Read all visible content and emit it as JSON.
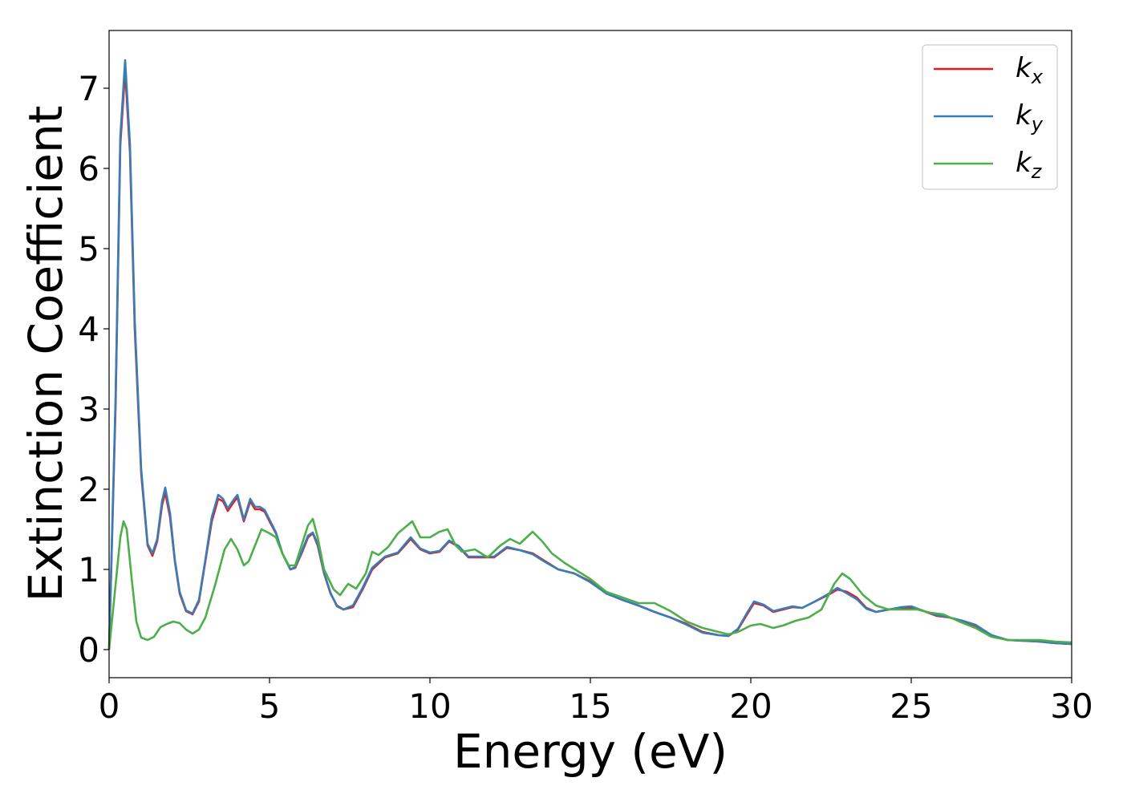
{
  "chart_data": {
    "type": "line",
    "xlabel": "Energy (eV)",
    "ylabel": "Extinction Coefficient",
    "xlim": [
      0,
      30
    ],
    "ylim": [
      -0.35,
      7.72
    ],
    "xticks": [
      0,
      5,
      10,
      15,
      20,
      25,
      30
    ],
    "yticks": [
      0,
      1,
      2,
      3,
      4,
      5,
      6,
      7
    ],
    "grid": false,
    "legend_position": "upper-right",
    "series": [
      {
        "name": "k",
        "subscript": "x",
        "color": "#e41a1c",
        "points": [
          [
            0,
            0
          ],
          [
            0.2,
            3.0
          ],
          [
            0.35,
            6.3
          ],
          [
            0.5,
            7.22
          ],
          [
            0.65,
            6.2
          ],
          [
            0.8,
            4.0
          ],
          [
            1.0,
            2.2
          ],
          [
            1.2,
            1.3
          ],
          [
            1.35,
            1.17
          ],
          [
            1.5,
            1.35
          ],
          [
            1.65,
            1.8
          ],
          [
            1.75,
            1.96
          ],
          [
            1.9,
            1.65
          ],
          [
            2.05,
            1.1
          ],
          [
            2.2,
            0.7
          ],
          [
            2.4,
            0.48
          ],
          [
            2.6,
            0.44
          ],
          [
            2.8,
            0.6
          ],
          [
            3.0,
            1.1
          ],
          [
            3.2,
            1.6
          ],
          [
            3.4,
            1.88
          ],
          [
            3.55,
            1.85
          ],
          [
            3.7,
            1.73
          ],
          [
            3.85,
            1.82
          ],
          [
            4.0,
            1.9
          ],
          [
            4.2,
            1.6
          ],
          [
            4.4,
            1.85
          ],
          [
            4.55,
            1.75
          ],
          [
            4.7,
            1.75
          ],
          [
            4.85,
            1.72
          ],
          [
            5.0,
            1.6
          ],
          [
            5.2,
            1.45
          ],
          [
            5.4,
            1.2
          ],
          [
            5.65,
            1.0
          ],
          [
            5.8,
            1.02
          ],
          [
            6.0,
            1.2
          ],
          [
            6.2,
            1.4
          ],
          [
            6.35,
            1.45
          ],
          [
            6.5,
            1.3
          ],
          [
            6.7,
            0.95
          ],
          [
            6.9,
            0.7
          ],
          [
            7.1,
            0.55
          ],
          [
            7.3,
            0.5
          ],
          [
            7.6,
            0.53
          ],
          [
            7.9,
            0.75
          ],
          [
            8.2,
            1.0
          ],
          [
            8.6,
            1.15
          ],
          [
            9.0,
            1.2
          ],
          [
            9.4,
            1.38
          ],
          [
            9.7,
            1.25
          ],
          [
            10.0,
            1.2
          ],
          [
            10.3,
            1.22
          ],
          [
            10.6,
            1.35
          ],
          [
            10.9,
            1.28
          ],
          [
            11.2,
            1.15
          ],
          [
            11.6,
            1.15
          ],
          [
            12.0,
            1.15
          ],
          [
            12.4,
            1.27
          ],
          [
            12.8,
            1.24
          ],
          [
            13.2,
            1.2
          ],
          [
            13.6,
            1.1
          ],
          [
            14.0,
            1.0
          ],
          [
            14.5,
            0.95
          ],
          [
            15.0,
            0.85
          ],
          [
            15.5,
            0.7
          ],
          [
            16.0,
            0.62
          ],
          [
            16.5,
            0.55
          ],
          [
            17.0,
            0.47
          ],
          [
            17.5,
            0.4
          ],
          [
            18.0,
            0.32
          ],
          [
            18.5,
            0.22
          ],
          [
            19.0,
            0.18
          ],
          [
            19.3,
            0.17
          ],
          [
            19.6,
            0.25
          ],
          [
            19.9,
            0.45
          ],
          [
            20.1,
            0.58
          ],
          [
            20.4,
            0.55
          ],
          [
            20.7,
            0.47
          ],
          [
            21.0,
            0.5
          ],
          [
            21.3,
            0.53
          ],
          [
            21.6,
            0.52
          ],
          [
            22.0,
            0.6
          ],
          [
            22.4,
            0.68
          ],
          [
            22.7,
            0.75
          ],
          [
            23.0,
            0.72
          ],
          [
            23.3,
            0.65
          ],
          [
            23.6,
            0.52
          ],
          [
            23.9,
            0.47
          ],
          [
            24.3,
            0.5
          ],
          [
            24.7,
            0.52
          ],
          [
            25.0,
            0.52
          ],
          [
            25.4,
            0.48
          ],
          [
            25.8,
            0.42
          ],
          [
            26.2,
            0.4
          ],
          [
            26.6,
            0.35
          ],
          [
            27.0,
            0.3
          ],
          [
            27.5,
            0.18
          ],
          [
            28.0,
            0.12
          ],
          [
            28.5,
            0.11
          ],
          [
            29.0,
            0.1
          ],
          [
            29.5,
            0.08
          ],
          [
            30.0,
            0.07
          ]
        ]
      },
      {
        "name": "k",
        "subscript": "y",
        "color": "#377eb8",
        "points": [
          [
            0,
            0
          ],
          [
            0.2,
            3.1
          ],
          [
            0.35,
            6.4
          ],
          [
            0.5,
            7.35
          ],
          [
            0.65,
            6.3
          ],
          [
            0.8,
            4.1
          ],
          [
            1.0,
            2.25
          ],
          [
            1.2,
            1.32
          ],
          [
            1.35,
            1.2
          ],
          [
            1.5,
            1.38
          ],
          [
            1.65,
            1.85
          ],
          [
            1.75,
            2.02
          ],
          [
            1.9,
            1.7
          ],
          [
            2.05,
            1.12
          ],
          [
            2.2,
            0.72
          ],
          [
            2.4,
            0.49
          ],
          [
            2.6,
            0.45
          ],
          [
            2.8,
            0.62
          ],
          [
            3.0,
            1.12
          ],
          [
            3.2,
            1.65
          ],
          [
            3.4,
            1.93
          ],
          [
            3.55,
            1.88
          ],
          [
            3.7,
            1.76
          ],
          [
            3.85,
            1.85
          ],
          [
            4.0,
            1.93
          ],
          [
            4.2,
            1.62
          ],
          [
            4.4,
            1.88
          ],
          [
            4.55,
            1.78
          ],
          [
            4.7,
            1.78
          ],
          [
            4.85,
            1.74
          ],
          [
            5.0,
            1.62
          ],
          [
            5.2,
            1.46
          ],
          [
            5.4,
            1.2
          ],
          [
            5.65,
            1.0
          ],
          [
            5.8,
            1.03
          ],
          [
            6.0,
            1.22
          ],
          [
            6.2,
            1.42
          ],
          [
            6.35,
            1.46
          ],
          [
            6.5,
            1.32
          ],
          [
            6.7,
            0.96
          ],
          [
            6.9,
            0.71
          ],
          [
            7.1,
            0.54
          ],
          [
            7.3,
            0.5
          ],
          [
            7.6,
            0.55
          ],
          [
            7.9,
            0.77
          ],
          [
            8.2,
            1.02
          ],
          [
            8.6,
            1.16
          ],
          [
            9.0,
            1.21
          ],
          [
            9.4,
            1.4
          ],
          [
            9.7,
            1.26
          ],
          [
            10.0,
            1.21
          ],
          [
            10.3,
            1.23
          ],
          [
            10.6,
            1.36
          ],
          [
            10.9,
            1.29
          ],
          [
            11.2,
            1.16
          ],
          [
            11.6,
            1.16
          ],
          [
            12.0,
            1.16
          ],
          [
            12.4,
            1.28
          ],
          [
            12.8,
            1.24
          ],
          [
            13.2,
            1.19
          ],
          [
            13.6,
            1.09
          ],
          [
            14.0,
            1.0
          ],
          [
            14.5,
            0.95
          ],
          [
            15.0,
            0.84
          ],
          [
            15.5,
            0.7
          ],
          [
            16.0,
            0.62
          ],
          [
            16.5,
            0.55
          ],
          [
            17.0,
            0.47
          ],
          [
            17.5,
            0.4
          ],
          [
            18.0,
            0.31
          ],
          [
            18.5,
            0.21
          ],
          [
            19.0,
            0.18
          ],
          [
            19.3,
            0.17
          ],
          [
            19.6,
            0.26
          ],
          [
            19.9,
            0.47
          ],
          [
            20.1,
            0.6
          ],
          [
            20.4,
            0.56
          ],
          [
            20.7,
            0.48
          ],
          [
            21.0,
            0.51
          ],
          [
            21.3,
            0.54
          ],
          [
            21.6,
            0.52
          ],
          [
            22.0,
            0.6
          ],
          [
            22.4,
            0.69
          ],
          [
            22.7,
            0.77
          ],
          [
            23.0,
            0.7
          ],
          [
            23.3,
            0.63
          ],
          [
            23.6,
            0.51
          ],
          [
            23.9,
            0.47
          ],
          [
            24.3,
            0.5
          ],
          [
            24.7,
            0.53
          ],
          [
            25.0,
            0.54
          ],
          [
            25.4,
            0.48
          ],
          [
            25.8,
            0.43
          ],
          [
            26.2,
            0.4
          ],
          [
            26.6,
            0.36
          ],
          [
            27.0,
            0.31
          ],
          [
            27.5,
            0.18
          ],
          [
            28.0,
            0.12
          ],
          [
            28.5,
            0.11
          ],
          [
            29.0,
            0.1
          ],
          [
            29.5,
            0.08
          ],
          [
            30.0,
            0.07
          ]
        ]
      },
      {
        "name": "k",
        "subscript": "z",
        "color": "#4daf4a",
        "points": [
          [
            0,
            0
          ],
          [
            0.2,
            0.8
          ],
          [
            0.35,
            1.4
          ],
          [
            0.45,
            1.6
          ],
          [
            0.55,
            1.5
          ],
          [
            0.7,
            0.9
          ],
          [
            0.85,
            0.35
          ],
          [
            1.0,
            0.15
          ],
          [
            1.2,
            0.12
          ],
          [
            1.4,
            0.16
          ],
          [
            1.6,
            0.28
          ],
          [
            1.8,
            0.32
          ],
          [
            2.0,
            0.35
          ],
          [
            2.2,
            0.33
          ],
          [
            2.4,
            0.25
          ],
          [
            2.6,
            0.2
          ],
          [
            2.8,
            0.25
          ],
          [
            3.0,
            0.4
          ],
          [
            3.3,
            0.8
          ],
          [
            3.6,
            1.25
          ],
          [
            3.8,
            1.38
          ],
          [
            4.0,
            1.25
          ],
          [
            4.2,
            1.05
          ],
          [
            4.35,
            1.1
          ],
          [
            4.5,
            1.25
          ],
          [
            4.75,
            1.5
          ],
          [
            5.0,
            1.45
          ],
          [
            5.2,
            1.4
          ],
          [
            5.4,
            1.2
          ],
          [
            5.6,
            1.05
          ],
          [
            5.8,
            1.05
          ],
          [
            6.0,
            1.3
          ],
          [
            6.2,
            1.55
          ],
          [
            6.35,
            1.63
          ],
          [
            6.5,
            1.4
          ],
          [
            6.7,
            1.0
          ],
          [
            7.0,
            0.75
          ],
          [
            7.2,
            0.68
          ],
          [
            7.45,
            0.82
          ],
          [
            7.7,
            0.76
          ],
          [
            8.0,
            0.95
          ],
          [
            8.2,
            1.22
          ],
          [
            8.4,
            1.18
          ],
          [
            8.7,
            1.28
          ],
          [
            9.0,
            1.45
          ],
          [
            9.3,
            1.55
          ],
          [
            9.45,
            1.6
          ],
          [
            9.7,
            1.4
          ],
          [
            10.0,
            1.4
          ],
          [
            10.3,
            1.47
          ],
          [
            10.55,
            1.5
          ],
          [
            10.8,
            1.3
          ],
          [
            11.0,
            1.22
          ],
          [
            11.4,
            1.25
          ],
          [
            11.8,
            1.15
          ],
          [
            12.2,
            1.3
          ],
          [
            12.5,
            1.38
          ],
          [
            12.8,
            1.32
          ],
          [
            13.2,
            1.47
          ],
          [
            13.5,
            1.35
          ],
          [
            13.8,
            1.2
          ],
          [
            14.2,
            1.08
          ],
          [
            14.6,
            0.98
          ],
          [
            15.0,
            0.88
          ],
          [
            15.5,
            0.72
          ],
          [
            16.0,
            0.65
          ],
          [
            16.5,
            0.58
          ],
          [
            17.0,
            0.58
          ],
          [
            17.5,
            0.48
          ],
          [
            18.0,
            0.35
          ],
          [
            18.5,
            0.27
          ],
          [
            19.0,
            0.22
          ],
          [
            19.3,
            0.19
          ],
          [
            19.6,
            0.22
          ],
          [
            20.0,
            0.3
          ],
          [
            20.3,
            0.32
          ],
          [
            20.7,
            0.27
          ],
          [
            21.0,
            0.3
          ],
          [
            21.4,
            0.36
          ],
          [
            21.8,
            0.4
          ],
          [
            22.2,
            0.5
          ],
          [
            22.6,
            0.82
          ],
          [
            22.85,
            0.95
          ],
          [
            23.1,
            0.88
          ],
          [
            23.5,
            0.68
          ],
          [
            23.9,
            0.55
          ],
          [
            24.3,
            0.5
          ],
          [
            24.7,
            0.5
          ],
          [
            25.2,
            0.5
          ],
          [
            25.6,
            0.46
          ],
          [
            26.0,
            0.44
          ],
          [
            26.5,
            0.35
          ],
          [
            27.0,
            0.27
          ],
          [
            27.5,
            0.16
          ],
          [
            28.0,
            0.12
          ],
          [
            28.5,
            0.12
          ],
          [
            29.0,
            0.12
          ],
          [
            29.5,
            0.1
          ],
          [
            30.0,
            0.09
          ]
        ]
      }
    ]
  }
}
